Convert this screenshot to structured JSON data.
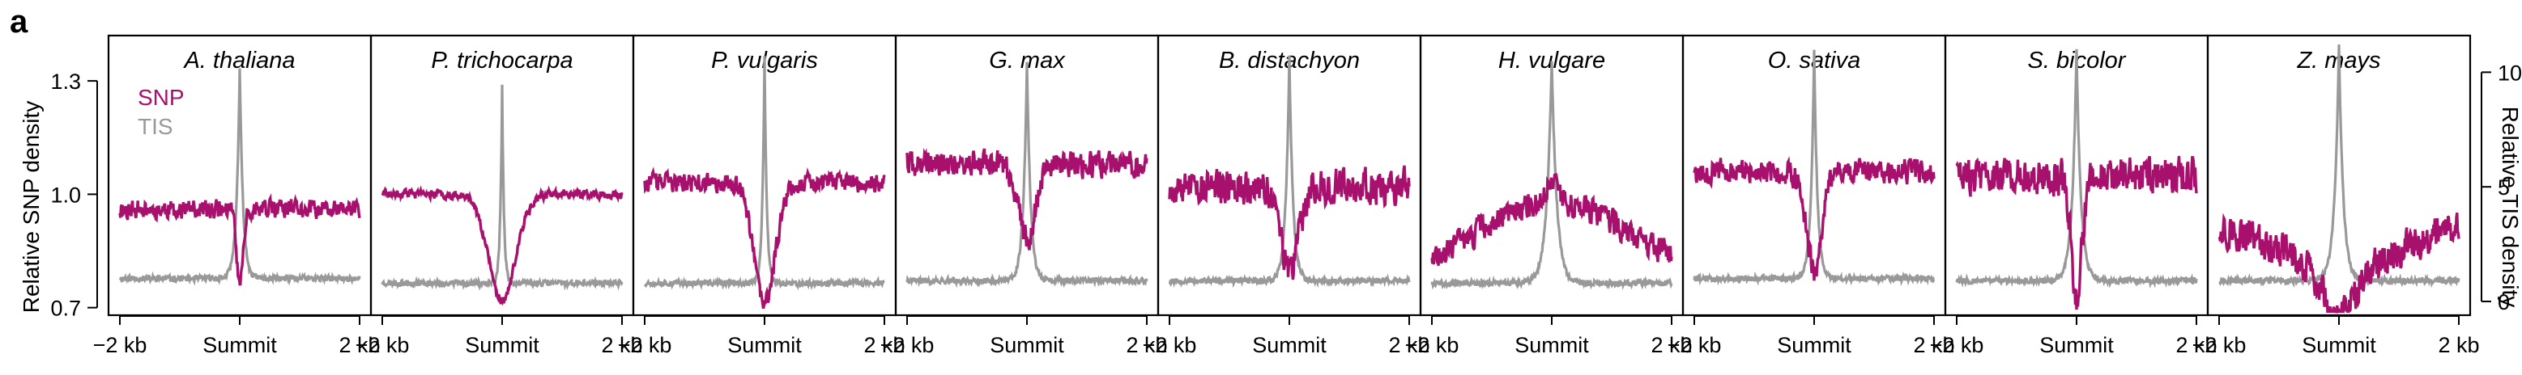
{
  "figure": {
    "panel_label": "a"
  },
  "chart_data": {
    "type": "line",
    "left_axis": {
      "label": "Relative SNP density",
      "ylim": [
        0.68,
        1.42
      ],
      "ticks": [
        0.7,
        1.0,
        1.3
      ],
      "tick_labels": [
        "0.7",
        "1.0",
        "1.3"
      ]
    },
    "right_axis": {
      "label": "Relative TIS density",
      "ylim": [
        -0.6,
        11.6
      ],
      "ticks": [
        0,
        5,
        10
      ],
      "tick_labels": [
        "0",
        "5",
        "10"
      ]
    },
    "x_axis": {
      "xlim": [
        -2,
        2
      ],
      "ticks": [
        -2,
        0,
        2
      ],
      "tick_labels": [
        "−2 kb",
        "Summit",
        "2 kb"
      ]
    },
    "legend": {
      "placement": "top-left",
      "entries": [
        {
          "name": "SNP",
          "color": "#a8106e"
        },
        {
          "name": "TIS",
          "color": "#999999"
        }
      ]
    },
    "colors": {
      "snp": "#a8106e",
      "tis": "#999999"
    },
    "panels": [
      {
        "title": "A. thaliana",
        "snp_base": 0.96,
        "snp_dip": 0.76,
        "snp_dip_width": 0.1,
        "snp_slope": 0.0,
        "snp_wave": 0.0,
        "snp_noise": 0.022,
        "tis_base": 1.0,
        "tis_peak": 9.2,
        "tis_width": 0.9,
        "seed": 11
      },
      {
        "title": "P. trichocarpa",
        "snp_base": 1.0,
        "snp_dip": 0.72,
        "snp_dip_width": 0.45,
        "snp_slope": 0.0,
        "snp_wave": 0.0,
        "snp_noise": 0.01,
        "tis_base": 0.8,
        "tis_peak": 8.6,
        "tis_width": 0.5,
        "seed": 23
      },
      {
        "title": "P. vulgaris",
        "snp_base": 1.03,
        "snp_dip": 0.71,
        "snp_dip_width": 0.35,
        "snp_slope": 0.0,
        "snp_wave": 0.0,
        "snp_noise": 0.022,
        "tis_base": 0.8,
        "tis_peak": 10.0,
        "tis_width": 0.6,
        "seed": 37
      },
      {
        "title": "G. max",
        "snp_base": 1.08,
        "snp_dip": 0.88,
        "snp_dip_width": 0.28,
        "snp_slope": 0.0,
        "snp_wave": 0.0,
        "snp_noise": 0.03,
        "tis_base": 0.9,
        "tis_peak": 9.6,
        "tis_width": 1.0,
        "seed": 41
      },
      {
        "title": "B. distachyon",
        "snp_base": 1.02,
        "snp_dip": 0.8,
        "snp_dip_width": 0.3,
        "snp_slope": 0.0,
        "snp_wave": 0.0,
        "snp_noise": 0.04,
        "tis_base": 0.9,
        "tis_peak": 9.8,
        "tis_width": 1.0,
        "seed": 53
      },
      {
        "title": "H. vulgare",
        "snp_base": 0.86,
        "snp_dip": 0.92,
        "snp_dip_width": 0.15,
        "snp_slope": 0.0,
        "snp_wave": 0.18,
        "snp_noise": 0.03,
        "tis_base": 0.8,
        "tis_peak": 9.8,
        "tis_width": 1.4,
        "seed": 67
      },
      {
        "title": "O. sativa",
        "snp_base": 1.06,
        "snp_dip": 0.8,
        "snp_dip_width": 0.25,
        "snp_slope": 0.0,
        "snp_wave": 0.0,
        "snp_noise": 0.028,
        "tis_base": 1.0,
        "tis_peak": 10.0,
        "tis_width": 0.9,
        "seed": 79
      },
      {
        "title": "S. bicolor",
        "snp_base": 1.05,
        "snp_dip": 0.73,
        "snp_dip_width": 0.18,
        "snp_slope": 0.0,
        "snp_wave": 0.0,
        "snp_noise": 0.042,
        "tis_base": 0.9,
        "tis_peak": 10.1,
        "tis_width": 1.2,
        "seed": 83
      },
      {
        "title": "Z. mays",
        "snp_base": 0.9,
        "snp_dip": 0.78,
        "snp_dip_width": 0.5,
        "snp_slope": 0.0,
        "snp_wave": -0.14,
        "snp_noise": 0.04,
        "tis_base": 0.9,
        "tis_peak": 10.2,
        "tis_width": 1.2,
        "seed": 97
      }
    ]
  }
}
